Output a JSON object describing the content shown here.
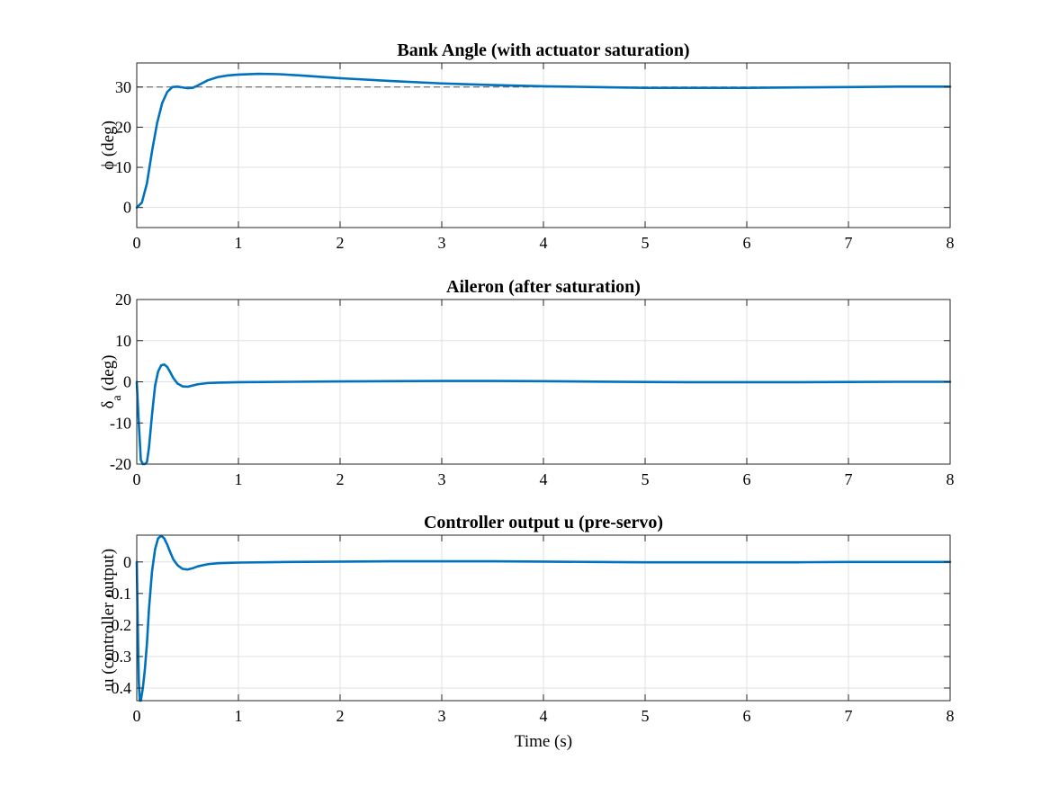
{
  "figure": {
    "xlabel": "Time (s)"
  },
  "colors": {
    "line": "#0072BD",
    "reference": "#555555",
    "saturation": "#A2142F",
    "grid": "#e0e0e0",
    "axes": "#262626"
  },
  "chart_data": [
    {
      "type": "line",
      "title": "Bank Angle (with actuator saturation)",
      "xlabel": "",
      "ylabel": "ϕ (deg)",
      "xlim": [
        0,
        8
      ],
      "ylim": [
        -5,
        36
      ],
      "xticks": [
        0,
        1,
        2,
        3,
        4,
        5,
        6,
        7,
        8
      ],
      "yticks": [
        0,
        10,
        20,
        30
      ],
      "grid": true,
      "reference_lines": [
        {
          "y": 30,
          "style": "dashed"
        }
      ],
      "series": [
        {
          "x": [
            0,
            0.05,
            0.1,
            0.15,
            0.2,
            0.25,
            0.3,
            0.35,
            0.4,
            0.45,
            0.5,
            0.55,
            0.6,
            0.7,
            0.8,
            0.9,
            1.0,
            1.2,
            1.4,
            1.6,
            2.0,
            2.5,
            3.0,
            3.5,
            4.0,
            4.5,
            5.0,
            5.5,
            6.0,
            6.5,
            7.0,
            7.5,
            8.0
          ],
          "y": [
            0,
            1.2,
            6,
            14,
            21,
            26,
            28.8,
            30,
            30.1,
            29.9,
            29.7,
            29.8,
            30.4,
            31.7,
            32.5,
            32.9,
            33.1,
            33.3,
            33.2,
            32.9,
            32.2,
            31.5,
            30.9,
            30.5,
            30.2,
            30.0,
            29.8,
            29.8,
            29.8,
            29.9,
            30.0,
            30.1,
            30.1
          ]
        }
      ]
    },
    {
      "type": "line",
      "title": "Aileron (after saturation)",
      "xlabel": "",
      "ylabel": "δ",
      "ylabel_sub": "a",
      "ylabel_suffix": " (deg)",
      "xlim": [
        0,
        8
      ],
      "ylim": [
        -20,
        20
      ],
      "xticks": [
        0,
        1,
        2,
        3,
        4,
        5,
        6,
        7,
        8
      ],
      "yticks": [
        -20,
        -10,
        0,
        10,
        20
      ],
      "grid": true,
      "reference_lines": [
        {
          "y": 20,
          "style": "solid"
        },
        {
          "y": -20,
          "style": "solid"
        }
      ],
      "series": [
        {
          "x": [
            0,
            0.02,
            0.04,
            0.06,
            0.08,
            0.1,
            0.12,
            0.15,
            0.18,
            0.21,
            0.24,
            0.27,
            0.3,
            0.33,
            0.36,
            0.4,
            0.45,
            0.5,
            0.55,
            0.6,
            0.7,
            0.8,
            0.9,
            1.0,
            1.5,
            2.0,
            2.5,
            3.0,
            3.5,
            4.0,
            4.5,
            5.0,
            5.5,
            6.0,
            6.5,
            7.0,
            7.5,
            8.0
          ],
          "y": [
            0,
            -10,
            -19,
            -20,
            -20,
            -19.5,
            -16,
            -8,
            -1,
            2.5,
            4,
            4.2,
            3.6,
            2.3,
            0.9,
            -0.4,
            -1.1,
            -1.2,
            -0.9,
            -0.6,
            -0.3,
            -0.2,
            -0.15,
            -0.1,
            0,
            0.1,
            0.15,
            0.2,
            0.2,
            0.15,
            0.05,
            -0.05,
            -0.1,
            -0.1,
            -0.1,
            -0.05,
            0,
            0
          ]
        }
      ]
    },
    {
      "type": "line",
      "title": "Controller output u (pre-servo)",
      "xlabel": "Time (s)",
      "ylabel": "u (controller output)",
      "xlim": [
        0,
        8
      ],
      "ylim": [
        -0.44,
        0.085
      ],
      "xticks": [
        0,
        1,
        2,
        3,
        4,
        5,
        6,
        7,
        8
      ],
      "yticks": [
        -0.4,
        -0.3,
        -0.2,
        -0.1,
        0
      ],
      "ytick_labels": [
        "-0.4",
        "-0.3",
        "-0.2",
        "-0.1",
        "0"
      ],
      "grid": true,
      "series": [
        {
          "x": [
            0,
            0.01,
            0.02,
            0.03,
            0.04,
            0.06,
            0.08,
            0.1,
            0.12,
            0.15,
            0.18,
            0.21,
            0.24,
            0.27,
            0.3,
            0.33,
            0.36,
            0.4,
            0.45,
            0.5,
            0.55,
            0.6,
            0.7,
            0.8,
            0.9,
            1.0,
            1.5,
            2.0,
            2.5,
            3.0,
            3.5,
            4.0,
            4.5,
            5.0,
            5.5,
            6.0,
            6.5,
            7.0,
            7.5,
            8.0
          ],
          "y": [
            0,
            -0.2,
            -0.38,
            -0.44,
            -0.44,
            -0.4,
            -0.34,
            -0.26,
            -0.15,
            -0.03,
            0.04,
            0.075,
            0.083,
            0.075,
            0.055,
            0.03,
            0.008,
            -0.01,
            -0.022,
            -0.024,
            -0.02,
            -0.014,
            -0.007,
            -0.004,
            -0.003,
            -0.002,
            0,
            0.001,
            0.002,
            0.002,
            0.002,
            0.001,
            0,
            -0.001,
            -0.001,
            -0.001,
            -0.001,
            0,
            0,
            0
          ]
        }
      ]
    }
  ]
}
